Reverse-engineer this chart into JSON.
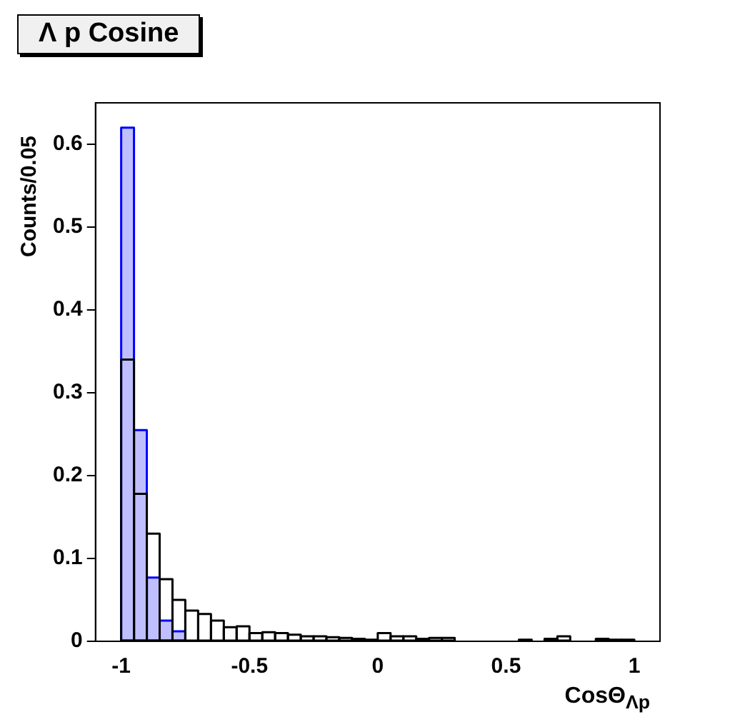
{
  "chart_data": {
    "type": "histogram",
    "title": "Λ p Cosine",
    "xlabel": "CosΘ$_{Λp}$",
    "ylabel": "Counts/0.05",
    "bins": [
      -1,
      -0.95,
      -0.9,
      -0.85,
      -0.8,
      -0.75,
      -0.7,
      -0.65,
      -0.6,
      -0.55,
      -0.5,
      -0.45,
      -0.4,
      -0.35,
      -0.3,
      -0.25,
      -0.2,
      -0.15,
      -0.1,
      -0.05,
      0,
      0.05,
      0.1,
      0.15,
      0.2,
      0.25,
      0.3,
      0.35,
      0.4,
      0.45,
      0.5,
      0.55,
      0.6,
      0.65,
      0.7,
      0.75,
      0.8,
      0.85,
      0.9,
      0.95,
      1
    ],
    "series": [
      {
        "color": "#000000",
        "values": [
          0.34,
          0.178,
          0.13,
          0.075,
          0.05,
          0.037,
          0.033,
          0.025,
          0.017,
          0.018,
          0.01,
          0.011,
          0.01,
          0.008,
          0.006,
          0.006,
          0.005,
          0.004,
          0.003,
          0.002,
          0.01,
          0.006,
          0.006,
          0.003,
          0.004,
          0.004,
          0,
          0,
          0,
          0,
          0,
          0.002,
          0,
          0.003,
          0.006,
          0,
          0,
          0.003,
          0.002,
          0.002
        ]
      },
      {
        "color": "#0000ff",
        "values": [
          0.62,
          0.255,
          0.077,
          0.025,
          0.012,
          null,
          0,
          0,
          0,
          0,
          0,
          0,
          0,
          0,
          0,
          0,
          0,
          0,
          0,
          0,
          0,
          0,
          0,
          0,
          0,
          0,
          0,
          0,
          0,
          0,
          0,
          0,
          0,
          0,
          0,
          0,
          0,
          0,
          0,
          0
        ]
      }
    ],
    "xlim": [
      -1.1,
      1.1
    ],
    "ylim": [
      0,
      0.65
    ],
    "xticks": [
      -1,
      -0.5,
      0,
      0.5,
      1
    ],
    "yticks": [
      0,
      0.1,
      0.2,
      0.3,
      0.4,
      0.5,
      0.6
    ],
    "grid": false,
    "legend": false
  }
}
